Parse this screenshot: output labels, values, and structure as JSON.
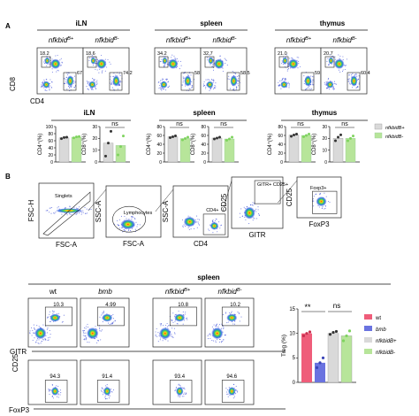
{
  "panelA": {
    "label": "A",
    "groups": [
      {
        "title": "iLN"
      },
      {
        "title": "spleen"
      },
      {
        "title": "thymus"
      }
    ],
    "genotypes": [
      "nfkbidB+",
      "nfkbidB-",
      "nfkbidB+",
      "nfkbidB-",
      "nfkbidB+",
      "nfkbidB-"
    ],
    "plot_values": [
      {
        "cd8": "18.2",
        "cd4": "67.7"
      },
      {
        "cd8": "18.6",
        "cd4": "74.2"
      },
      {
        "cd8": "34.2",
        "cd4": "58.7"
      },
      {
        "cd8": "32.7",
        "cd4": "58.5"
      },
      {
        "cd8": "21.0",
        "cd4": "59.8"
      },
      {
        "cd8": "20.7",
        "cd4": "60.4"
      }
    ],
    "x_axis_label": "CD4",
    "y_axis_label": "CD8",
    "legend": [
      "nfkbidB+",
      "nfkbidB-"
    ],
    "colors": {
      "bplus": "#d9d9d9",
      "bminus": "#b7e59a",
      "bplus_dot": "#333333",
      "bminus_dot": "#7fd35f"
    }
  },
  "chart_data": [
    {
      "type": "bar",
      "group": "iLN",
      "ylabel": "CD4⁺(%)",
      "ylim": [
        0,
        100
      ],
      "yticks": [
        "0",
        "20",
        "40",
        "60",
        "80",
        "100"
      ],
      "sig": "",
      "categories": [
        "nfkbidB+",
        "nfkbidB-"
      ],
      "values": [
        68,
        70
      ],
      "points": [
        [
          66,
          69,
          70
        ],
        [
          68,
          71,
          72
        ]
      ]
    },
    {
      "type": "bar",
      "group": "iLN",
      "ylabel": "CD8⁺(%)",
      "ylim": [
        0,
        30
      ],
      "yticks": [
        "0",
        "10",
        "20",
        "30"
      ],
      "sig": "ns",
      "categories": [
        "nfkbidB+",
        "nfkbidB-"
      ],
      "values": [
        16,
        14
      ],
      "points": [
        [
          5,
          16,
          26
        ],
        [
          6,
          13,
          22
        ]
      ]
    },
    {
      "type": "bar",
      "group": "spleen",
      "ylabel": "CD4⁺(%)",
      "ylim": [
        0,
        80
      ],
      "yticks": [
        "0",
        "20",
        "40",
        "60",
        "80"
      ],
      "sig": "ns",
      "categories": [
        "nfkbidB+",
        "nfkbidB-"
      ],
      "values": [
        57,
        53
      ],
      "points": [
        [
          55,
          57,
          59
        ],
        [
          50,
          53,
          56
        ]
      ]
    },
    {
      "type": "bar",
      "group": "spleen",
      "ylabel": "CD8⁺(%)",
      "ylim": [
        0,
        80
      ],
      "yticks": [
        "0",
        "20",
        "40",
        "60",
        "80"
      ],
      "sig": "ns",
      "categories": [
        "nfkbidB+",
        "nfkbidB-"
      ],
      "values": [
        54,
        52
      ],
      "points": [
        [
          52,
          54,
          56
        ],
        [
          49,
          52,
          56
        ]
      ]
    },
    {
      "type": "bar",
      "group": "thymus",
      "ylabel": "CD4⁺(%)",
      "ylim": [
        0,
        80
      ],
      "yticks": [
        "0",
        "20",
        "40",
        "60",
        "80"
      ],
      "sig": "ns",
      "categories": [
        "nfkbidB+",
        "nfkbidB-"
      ],
      "values": [
        61,
        60
      ],
      "points": [
        [
          58,
          61,
          63
        ],
        [
          57,
          60,
          63
        ]
      ]
    },
    {
      "type": "bar",
      "group": "thymus",
      "ylabel": "CD8⁺(%)",
      "ylim": [
        0,
        30
      ],
      "yticks": [
        "0",
        "10",
        "20",
        "30"
      ],
      "sig": "ns",
      "categories": [
        "nfkbidB+",
        "nfkbidB-"
      ],
      "values": [
        20,
        20
      ],
      "points": [
        [
          18,
          21,
          23
        ],
        [
          18,
          20,
          22
        ]
      ]
    },
    {
      "type": "bar",
      "group": "treg",
      "ylabel": "Treg (%)",
      "ylim": [
        0,
        15
      ],
      "yticks": [
        "0",
        "5",
        "10",
        "15"
      ],
      "sig": [
        "**",
        "ns"
      ],
      "categories": [
        "wt",
        "bmb",
        "nfkbidB+",
        "nfkbidB-"
      ],
      "values": [
        10,
        4,
        10,
        9.5
      ],
      "points": [
        [
          9.5,
          10,
          10.3
        ],
        [
          3,
          4,
          5
        ],
        [
          9.8,
          10.2,
          10.4
        ],
        [
          8.5,
          9.5,
          10.5
        ]
      ]
    }
  ],
  "panelB": {
    "label": "B",
    "gating": [
      {
        "gate": "Singlets",
        "x": "FSC-A",
        "y": "FSC-H"
      },
      {
        "gate": "Lymphocytes",
        "x": "FSC-A",
        "y": "SSC-A"
      },
      {
        "gate": "CD4+",
        "x": "CD4",
        "y": "SSC-A"
      },
      {
        "gate": "GITR+ CD25+",
        "x": "GITR",
        "y": "CD25"
      },
      {
        "gate": "Foxp3+",
        "x": "FoxP3",
        "y": "CD25"
      }
    ],
    "spleen_title": "spleen",
    "columns": [
      "wt",
      "bmb",
      "nfkbidB+",
      "nfkbidB-"
    ],
    "row1_values": [
      "10.3",
      "4.99",
      "10.8",
      "10.2"
    ],
    "row2_values": [
      "94.3",
      "91.4",
      "93.4",
      "94.6"
    ],
    "row1_xlabel": "GITR",
    "row2_xlabel": "FoxP3",
    "ylabel": "CD25",
    "legend": [
      {
        "label": "wt",
        "color": "#ef5d7a"
      },
      {
        "label": "bmb",
        "color": "#6a73e0"
      },
      {
        "label": "nfkbidB+",
        "color": "#d9d9d9"
      },
      {
        "label": "nfkbidB-",
        "color": "#b7e59a"
      }
    ]
  }
}
